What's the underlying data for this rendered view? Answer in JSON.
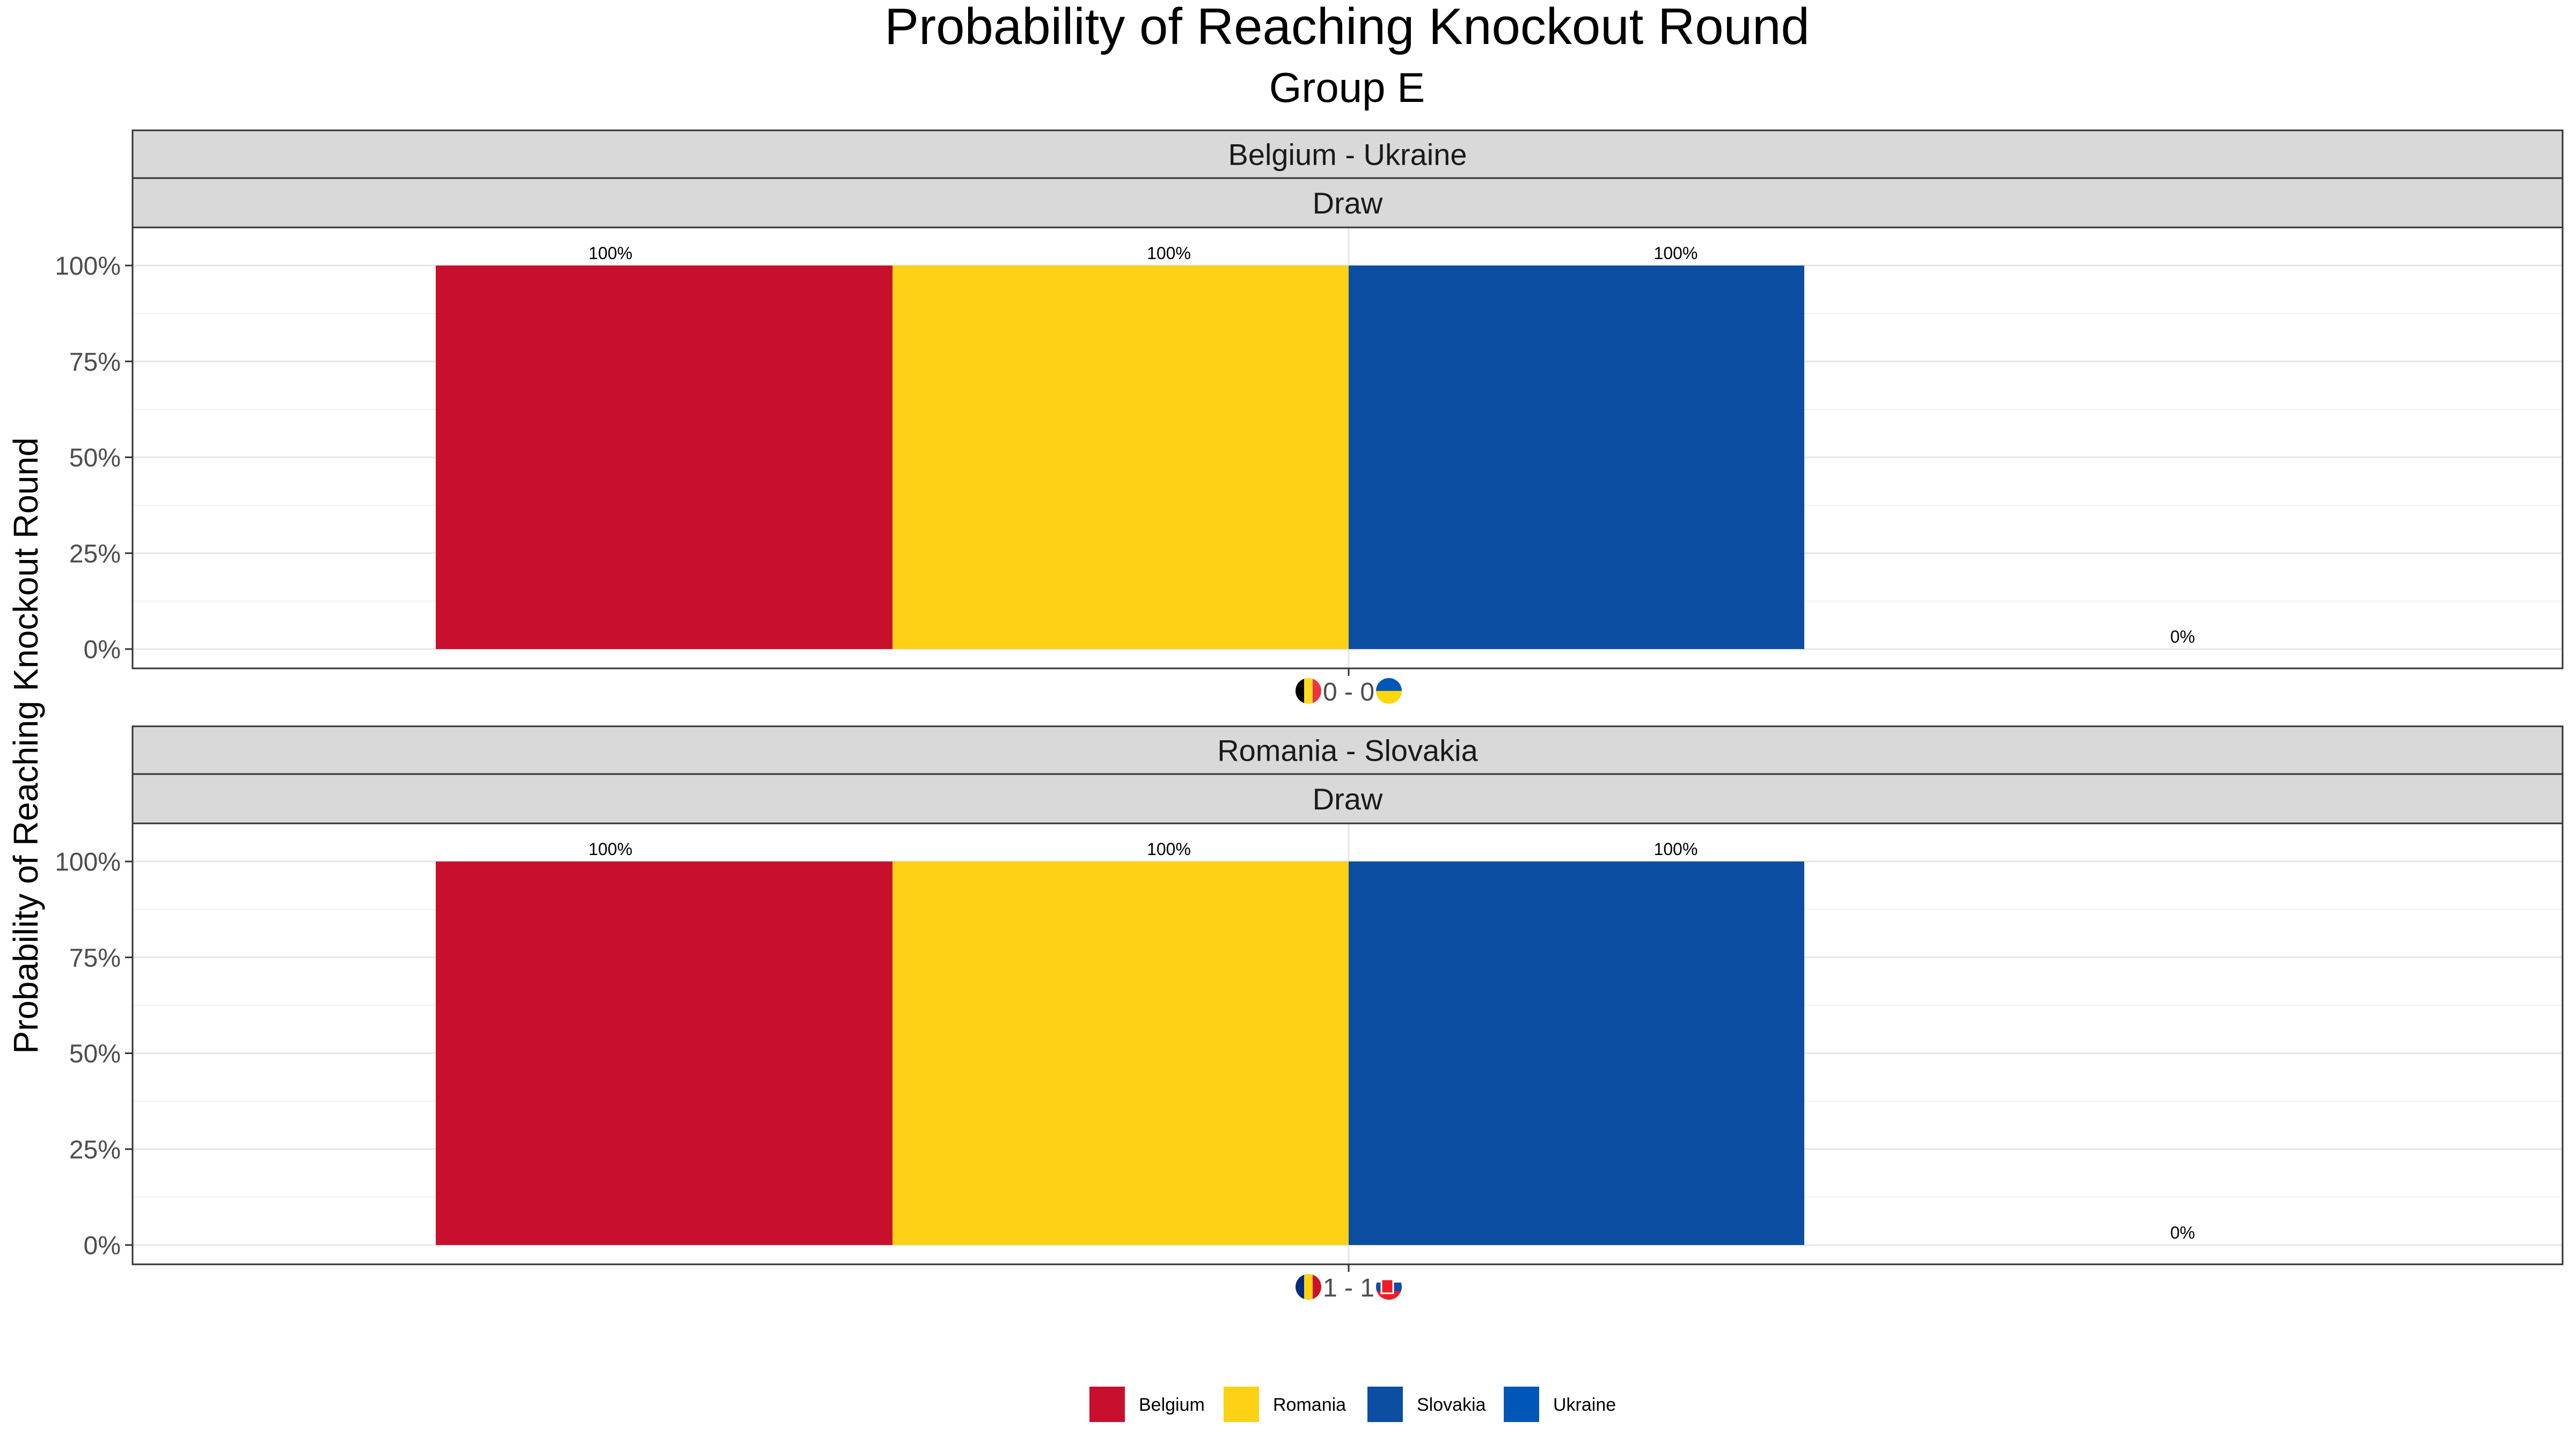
{
  "chart_data": {
    "type": "bar",
    "title": "Probability of Reaching Knockout Round",
    "subtitle": "Group E",
    "ylabel": "Probability of Reaching Knockout Round",
    "xlabel": "",
    "ylim": [
      0,
      1
    ],
    "yticks": [
      {
        "value": 0,
        "label": "0%"
      },
      {
        "value": 0.25,
        "label": "25%"
      },
      {
        "value": 0.5,
        "label": "50%"
      },
      {
        "value": 0.75,
        "label": "75%"
      },
      {
        "value": 1,
        "label": "100%"
      }
    ],
    "grid": true,
    "legend_position": "bottom",
    "series_colors": {
      "Belgium": "#C8102E",
      "Romania": "#FCD116",
      "Slovakia": "#0B4EA2",
      "Ukraine": "#0057B7"
    },
    "legend": [
      {
        "name": "Belgium",
        "color": "#C8102E"
      },
      {
        "name": "Romania",
        "color": "#FCD116"
      },
      {
        "name": "Slovakia",
        "color": "#0B4EA2"
      },
      {
        "name": "Ukraine",
        "color": "#0057B7"
      }
    ],
    "panels": [
      {
        "match": "Belgium - Ukraine",
        "result": "Draw",
        "x_tick_label": "0 - 0",
        "home_flag": "belgium-flag-icon",
        "away_flag": "ukraine-flag-icon",
        "bars": [
          {
            "team": "Belgium",
            "value": 1,
            "label": "100%"
          },
          {
            "team": "Romania",
            "value": 1,
            "label": "100%"
          },
          {
            "team": "Slovakia",
            "value": 1,
            "label": "100%"
          },
          {
            "team": "Ukraine",
            "value": 0,
            "label": "0%"
          }
        ]
      },
      {
        "match": "Romania - Slovakia",
        "result": "Draw",
        "x_tick_label": "1 - 1",
        "home_flag": "romania-flag-icon",
        "away_flag": "slovakia-flag-icon",
        "bars": [
          {
            "team": "Belgium",
            "value": 1,
            "label": "100%"
          },
          {
            "team": "Romania",
            "value": 1,
            "label": "100%"
          },
          {
            "team": "Slovakia",
            "value": 1,
            "label": "100%"
          },
          {
            "team": "Ukraine",
            "value": 0,
            "label": "0%"
          }
        ]
      }
    ]
  }
}
